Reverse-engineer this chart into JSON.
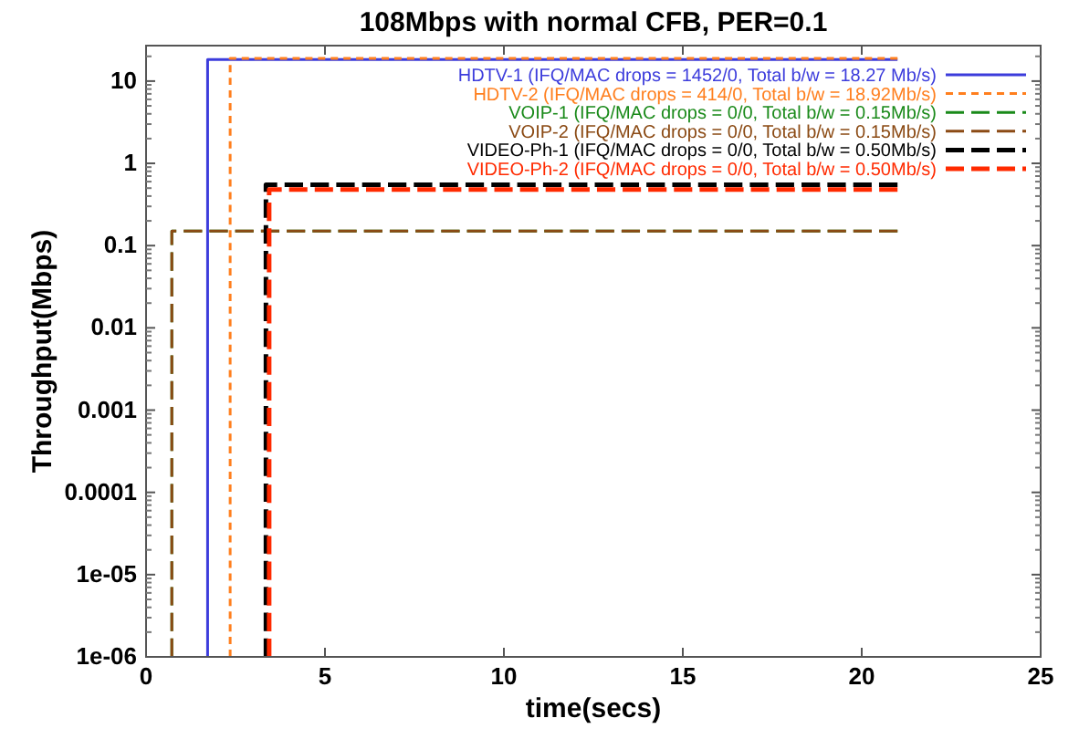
{
  "chart_data": {
    "type": "line",
    "title": "108Mbps with normal CFB, PER=0.1",
    "xlabel": "time(secs)",
    "ylabel": "Throughput(Mbps)",
    "log": "y",
    "xlim": [
      0,
      25
    ],
    "xticks": [
      0,
      5,
      10,
      15,
      20,
      25
    ],
    "ylim": [
      1e-06,
      27
    ],
    "yticks": [
      {
        "value": 1e-06,
        "label": "1e-06"
      },
      {
        "value": 1e-05,
        "label": "1e-05"
      },
      0.0001,
      0.001,
      0.01,
      0.1,
      1,
      10
    ],
    "grid": false,
    "legend": "top right",
    "series": [
      {
        "name": "HDTV-1 (IFQ/MAC drops = 1452/0, Total b/w = 18.27 Mb/s)",
        "color": "#3c3cdc",
        "line_style": "solid",
        "x": [
          1.72,
          1.72,
          21
        ],
        "values": [
          1e-06,
          18.3,
          18.3
        ]
      },
      {
        "name": "HDTV-2 (IFQ/MAC drops = 414/0, Total b/w = 18.92Mb/s)",
        "color": "#ff7f1e",
        "line_style": "dotted",
        "x": [
          2.35,
          2.35,
          21
        ],
        "values": [
          1e-06,
          18.9,
          18.9
        ]
      },
      {
        "name": "VOIP-1 (IFQ/MAC drops = 0/0, Total b/w = 0.15Mb/s)",
        "color": "#1a8a1a",
        "line_style": "dashed",
        "x": [
          0.72,
          0.72,
          21
        ],
        "values": [
          1e-06,
          0.15,
          0.15
        ]
      },
      {
        "name": "VOIP-2 (IFQ/MAC drops = 0/0, Total b/w = 0.15Mb/s)",
        "color": "#8b4a14",
        "line_style": "dashed",
        "x": [
          0.72,
          0.72,
          21
        ],
        "values": [
          1e-06,
          0.15,
          0.15
        ]
      },
      {
        "name": "VIDEO-Ph-1 (IFQ/MAC drops = 0/0, Total b/w = 0.50Mb/s)",
        "color": "#000000",
        "line_style": "dashed",
        "x": [
          3.35,
          3.35,
          21
        ],
        "values": [
          1e-06,
          0.55,
          0.55
        ]
      },
      {
        "name": "VIDEO-Ph-2 (IFQ/MAC drops = 0/0, Total b/w = 0.50Mb/s)",
        "color": "#ff2a00",
        "line_style": "dashed",
        "x": [
          3.44,
          3.44,
          21
        ],
        "values": [
          1e-06,
          0.48,
          0.48
        ]
      }
    ]
  }
}
